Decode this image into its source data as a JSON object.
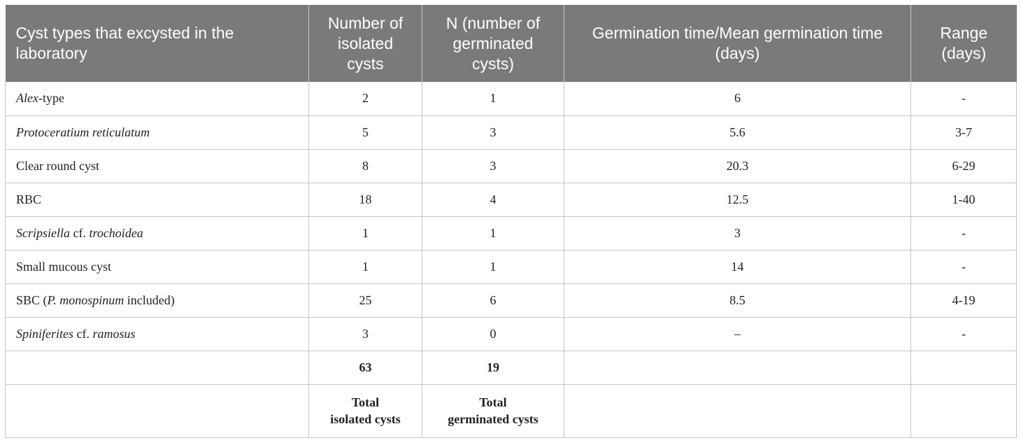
{
  "table": {
    "headers": [
      "Cyst types that excysted in the laboratory",
      "Number of isolated cysts",
      "N (number of germinated cysts)",
      "Germination time/Mean germination time (days)",
      "Range (days)"
    ],
    "rows": [
      {
        "name_parts": [
          {
            "text": "Alex",
            "italic": true
          },
          {
            "text": "-type",
            "italic": false
          }
        ],
        "isolated": "2",
        "germinated": "1",
        "time": "6",
        "range": "-"
      },
      {
        "name_parts": [
          {
            "text": "Protoceratium reticulatum",
            "italic": true
          }
        ],
        "isolated": "5",
        "germinated": "3",
        "time": "5.6",
        "range": "3-7"
      },
      {
        "name_parts": [
          {
            "text": "Clear round cyst",
            "italic": false
          }
        ],
        "isolated": "8",
        "germinated": "3",
        "time": "20.3",
        "range": "6-29"
      },
      {
        "name_parts": [
          {
            "text": "RBC",
            "italic": false
          }
        ],
        "isolated": "18",
        "germinated": "4",
        "time": "12.5",
        "range": "1-40"
      },
      {
        "name_parts": [
          {
            "text": "Scripsiella",
            "italic": true
          },
          {
            "text": " cf. ",
            "italic": false
          },
          {
            "text": "trochoidea",
            "italic": true
          }
        ],
        "isolated": "1",
        "germinated": "1",
        "time": "3",
        "range": "-"
      },
      {
        "name_parts": [
          {
            "text": "Small mucous cyst",
            "italic": false
          }
        ],
        "isolated": "1",
        "germinated": "1",
        "time": "14",
        "range": "-"
      },
      {
        "name_parts": [
          {
            "text": "SBC (",
            "italic": false
          },
          {
            "text": "P. monospinum",
            "italic": true
          },
          {
            "text": " included)",
            "italic": false
          }
        ],
        "isolated": "25",
        "germinated": "6",
        "time": "8.5",
        "range": "4-19"
      },
      {
        "name_parts": [
          {
            "text": "Spiniferites",
            "italic": true
          },
          {
            "text": " cf. ",
            "italic": false
          },
          {
            "text": "ramosus",
            "italic": true
          }
        ],
        "isolated": "3",
        "germinated": "0",
        "time": "–",
        "range": "-"
      }
    ],
    "totals": {
      "isolated": "63",
      "germinated": "19",
      "isolated_label_1": "Total",
      "isolated_label_2": "isolated cysts",
      "germinated_label_1": "Total",
      "germinated_label_2": "germinated cysts"
    }
  }
}
